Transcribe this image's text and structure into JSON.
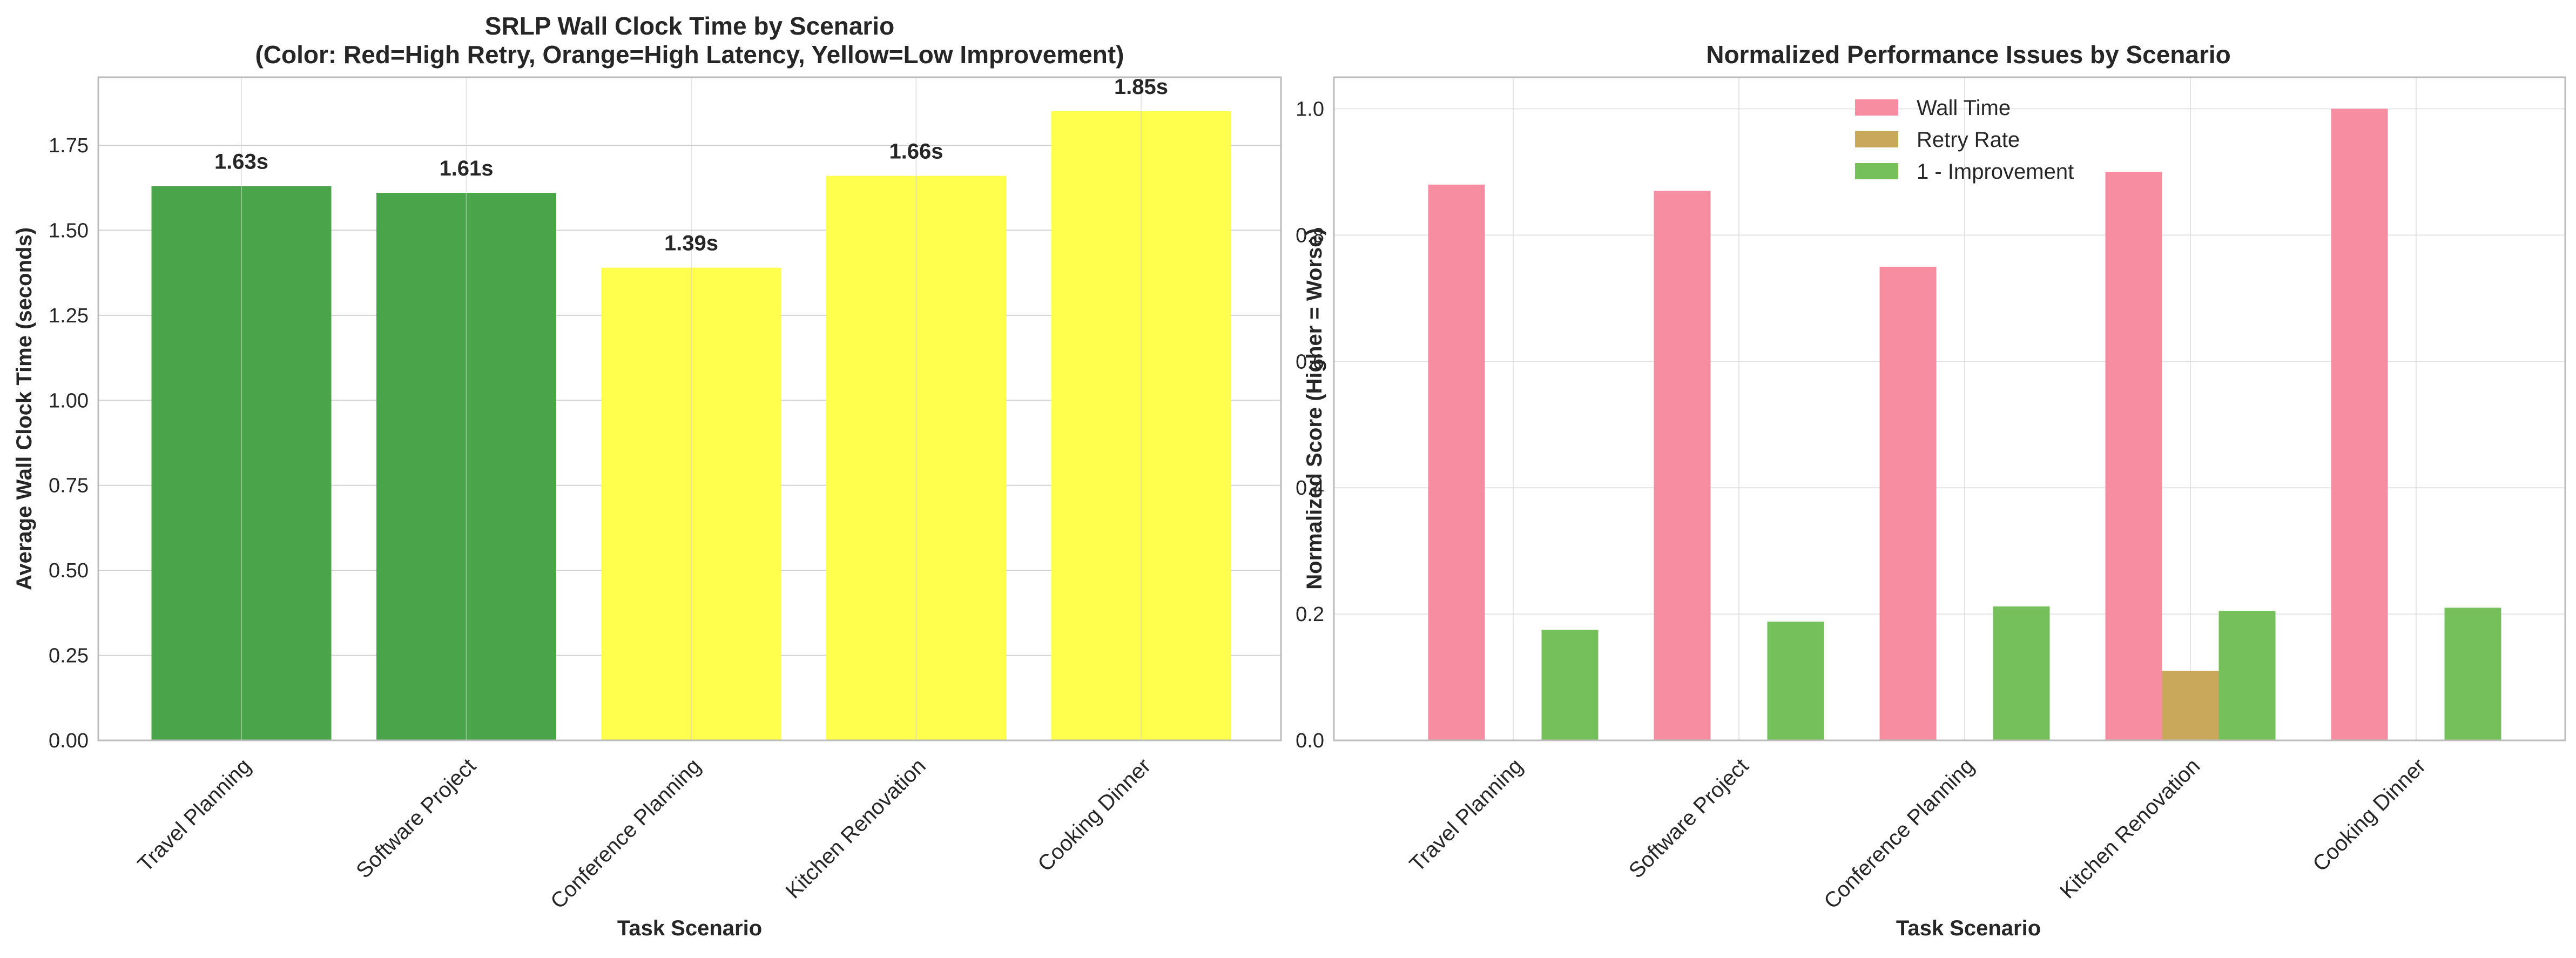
{
  "chart_data": [
    {
      "type": "bar",
      "title_line1": "SRLP Wall Clock Time by Scenario",
      "title_line2": "(Color: Red=High Retry, Orange=High Latency, Yellow=Low Improvement)",
      "xlabel": "Task Scenario",
      "ylabel": "Average Wall Clock Time (seconds)",
      "categories": [
        "Travel Planning",
        "Software Project",
        "Conference Planning",
        "Kitchen Renovation",
        "Cooking Dinner"
      ],
      "values": [
        1.63,
        1.61,
        1.39,
        1.66,
        1.85
      ],
      "data_labels": [
        "1.63s",
        "1.61s",
        "1.39s",
        "1.66s",
        "1.85s"
      ],
      "bar_colors": [
        "#4aa54a",
        "#4aa54a",
        "#ffff4d",
        "#ffff4d",
        "#ffff4d"
      ],
      "ylim": [
        0,
        1.95
      ],
      "yticks": [
        0.0,
        0.25,
        0.5,
        0.75,
        1.0,
        1.25,
        1.5,
        1.75
      ],
      "ytick_labels": [
        "0.00",
        "0.25",
        "0.50",
        "0.75",
        "1.00",
        "1.25",
        "1.50",
        "1.75"
      ],
      "grid": true
    },
    {
      "type": "bar",
      "title": "Normalized Performance Issues by Scenario",
      "xlabel": "Task Scenario",
      "ylabel": "Normalized Score (Higher = Worse)",
      "categories": [
        "Travel Planning",
        "Software Project",
        "Conference Planning",
        "Kitchen Renovation",
        "Cooking Dinner"
      ],
      "series": [
        {
          "name": "Wall Time",
          "color": "#f78da0",
          "values": [
            0.88,
            0.87,
            0.75,
            0.9,
            1.0
          ]
        },
        {
          "name": "Retry Rate",
          "color": "#c9a75b",
          "values": [
            0,
            0,
            0,
            0.11,
            0
          ]
        },
        {
          "name": "1 - Improvement",
          "color": "#76c05b",
          "values": [
            0.175,
            0.188,
            0.212,
            0.205,
            0.21
          ]
        }
      ],
      "ylim": [
        0,
        1.05
      ],
      "yticks": [
        0.0,
        0.2,
        0.4,
        0.6,
        0.8,
        1.0
      ],
      "ytick_labels": [
        "0.0",
        "0.2",
        "0.4",
        "0.6",
        "0.8",
        "1.0"
      ],
      "legend_position": "top-center",
      "grid": true
    }
  ]
}
